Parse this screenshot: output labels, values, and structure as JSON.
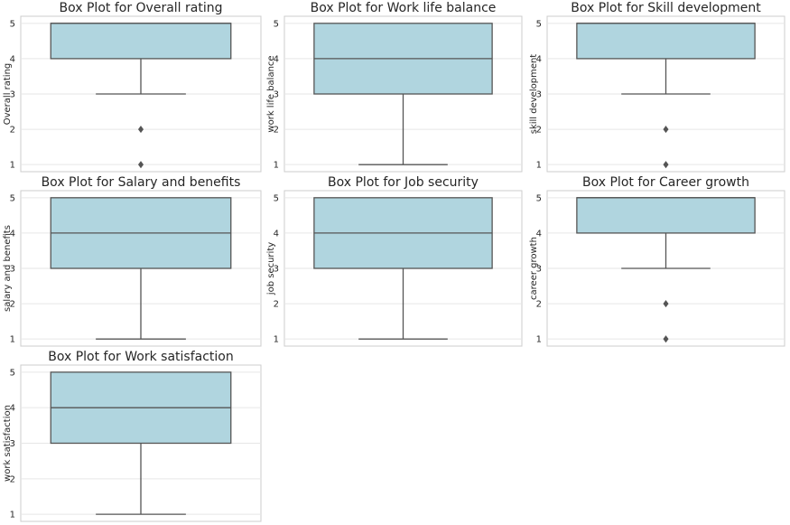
{
  "colors": {
    "box_fill": "#b0d5df",
    "line": "#555555",
    "flier": "#555555",
    "grid": "#e6e6e6"
  },
  "chart_data": [
    {
      "type": "box",
      "title": "Box Plot for Overall rating",
      "ylabel": "Overall rating",
      "yticks": [
        1,
        2,
        3,
        4,
        5
      ],
      "ylim": [
        0.8,
        5.2
      ],
      "grid": true,
      "q1": 4,
      "median": 5,
      "q3": 5,
      "whisker_low": 3,
      "whisker_high": 5,
      "outliers": [
        2,
        1
      ]
    },
    {
      "type": "box",
      "title": "Box Plot for Work life balance",
      "ylabel": "work life balance",
      "yticks": [
        1,
        2,
        3,
        4,
        5
      ],
      "ylim": [
        0.8,
        5.2
      ],
      "grid": true,
      "q1": 3,
      "median": 4,
      "q3": 5,
      "whisker_low": 1,
      "whisker_high": 5,
      "outliers": []
    },
    {
      "type": "box",
      "title": "Box Plot for Skill development",
      "ylabel": "skill development",
      "yticks": [
        1,
        2,
        3,
        4,
        5
      ],
      "ylim": [
        0.8,
        5.2
      ],
      "grid": true,
      "q1": 4,
      "median": 5,
      "q3": 5,
      "whisker_low": 3,
      "whisker_high": 5,
      "outliers": [
        2,
        1
      ]
    },
    {
      "type": "box",
      "title": "Box Plot for Salary and benefits",
      "ylabel": "salary and benefits",
      "yticks": [
        1,
        2,
        3,
        4,
        5
      ],
      "ylim": [
        0.8,
        5.2
      ],
      "grid": true,
      "q1": 3,
      "median": 4,
      "q3": 5,
      "whisker_low": 1,
      "whisker_high": 5,
      "outliers": []
    },
    {
      "type": "box",
      "title": "Box Plot for Job security",
      "ylabel": "job security",
      "yticks": [
        1,
        2,
        3,
        4,
        5
      ],
      "ylim": [
        0.8,
        5.2
      ],
      "grid": true,
      "q1": 3,
      "median": 4,
      "q3": 5,
      "whisker_low": 1,
      "whisker_high": 5,
      "outliers": []
    },
    {
      "type": "box",
      "title": "Box Plot for Career growth",
      "ylabel": "career growth",
      "yticks": [
        1,
        2,
        3,
        4,
        5
      ],
      "ylim": [
        0.8,
        5.2
      ],
      "grid": true,
      "q1": 4,
      "median": 5,
      "q3": 5,
      "whisker_low": 3,
      "whisker_high": 5,
      "outliers": [
        2,
        1
      ]
    },
    {
      "type": "box",
      "title": "Box Plot for Work satisfaction",
      "ylabel": "work satisfaction",
      "yticks": [
        1,
        2,
        3,
        4,
        5
      ],
      "ylim": [
        0.8,
        5.2
      ],
      "grid": true,
      "q1": 3,
      "median": 4,
      "q3": 5,
      "whisker_low": 1,
      "whisker_high": 5,
      "outliers": []
    }
  ]
}
